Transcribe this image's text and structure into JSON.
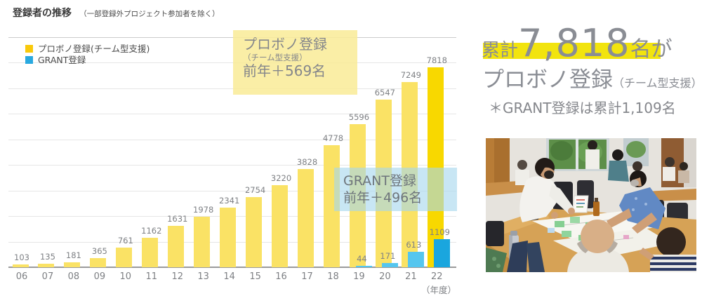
{
  "page": {
    "title": "登録者の推移",
    "subtitle": "（一部登録外プロジェクト参加者を除く）"
  },
  "chart_data": {
    "type": "bar",
    "categories": [
      "06",
      "07",
      "08",
      "09",
      "10",
      "11",
      "12",
      "13",
      "14",
      "15",
      "16",
      "17",
      "18",
      "19",
      "20",
      "21",
      "22"
    ],
    "series": [
      {
        "name": "プロボノ登録(チーム型支援)",
        "values": [
          103,
          135,
          181,
          365,
          761,
          1162,
          1631,
          1978,
          2341,
          2754,
          3220,
          3828,
          4778,
          5596,
          6547,
          7249,
          7818
        ]
      },
      {
        "name": "GRANT登録",
        "values": [
          0,
          0,
          0,
          0,
          0,
          0,
          0,
          0,
          0,
          0,
          0,
          0,
          0,
          44,
          171,
          613,
          1109
        ]
      }
    ],
    "ylim": [
      0,
      9000
    ],
    "gridline_interval": 1000,
    "grid": true,
    "legend_position": "top-left",
    "x_axis_unit": "（年度）",
    "title": "登録者の推移",
    "xlabel": "年度",
    "ylabel": ""
  },
  "annotations": {
    "probono": {
      "line1": "プロボノ登録",
      "line2": "（チーム型支援）",
      "line3": "前年＋569名"
    },
    "grant": {
      "line1": "GRANT登録",
      "line2": "前年＋496名"
    }
  },
  "summary": {
    "prefix": "累計",
    "number": "7,818",
    "suffix_mei": "名",
    "suffix_ga": "が",
    "line2_main": "プロボノ登録",
    "line2_sub": "（チーム型支援）",
    "note": "＊GRANT登録は累計1,109名"
  },
  "colors": {
    "bar_yellow": "#FAE265",
    "bar_yellow_final": "#F8D800",
    "bar_blue": "#55C6EF",
    "bar_blue_final": "#1AA6DE",
    "legend_yellow": "#F9C90B",
    "legend_blue": "#29A9E0",
    "grid": "#E6E6E6",
    "axis": "#9B9B9B",
    "label_text": "#7E8084",
    "annotation_yellow_bg": "rgba(249,235,150,0.85)",
    "annotation_blue_bg": "rgba(167,215,238,0.62)",
    "highlight": "#F2E40E",
    "summary_text": "#8A8D94"
  }
}
